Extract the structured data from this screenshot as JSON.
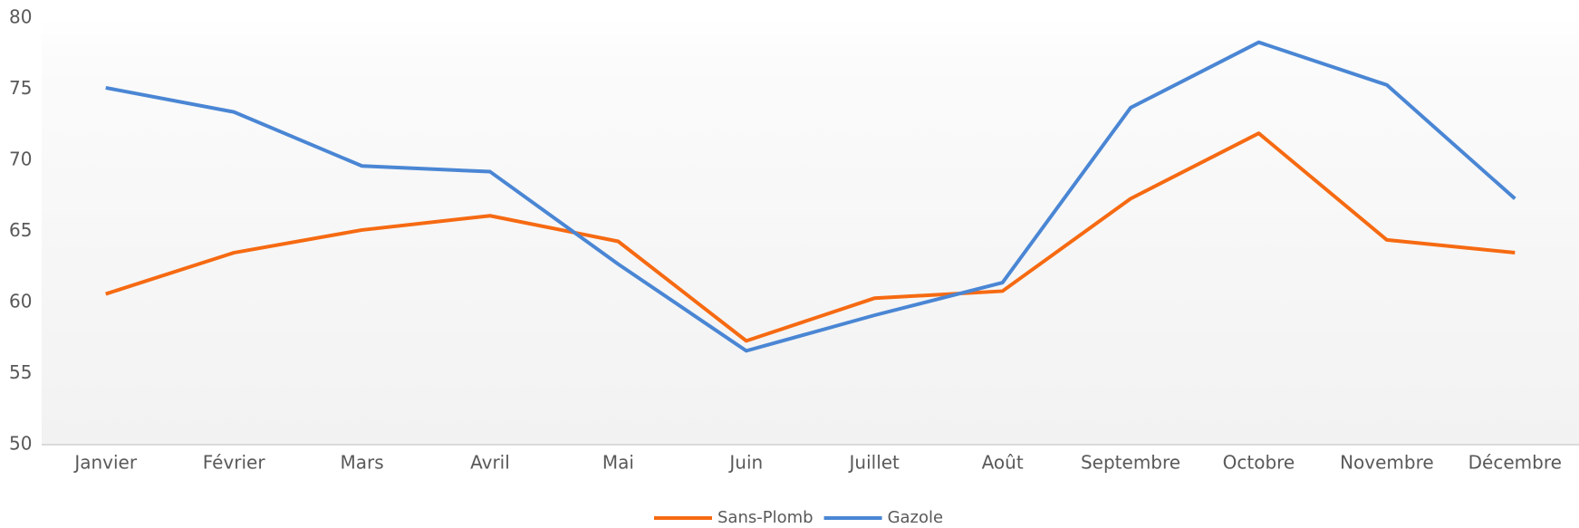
{
  "chart_data": {
    "type": "line",
    "categories": [
      "Janvier",
      "Février",
      "Mars",
      "Avril",
      "Mai",
      "Juin",
      "Juillet",
      "Août",
      "Septembre",
      "Octobre",
      "Novembre",
      "Décembre"
    ],
    "series": [
      {
        "name": "Sans-Plomb",
        "color": "#f66a12",
        "values": [
          60.6,
          63.5,
          65.1,
          66.1,
          64.3,
          57.3,
          60.3,
          60.8,
          67.3,
          71.9,
          64.4,
          63.5
        ]
      },
      {
        "name": "Gazole",
        "color": "#4a86d4",
        "values": [
          75.1,
          73.4,
          69.6,
          69.2,
          62.7,
          56.6,
          59.1,
          61.4,
          73.7,
          78.3,
          75.3,
          67.3
        ]
      }
    ],
    "ylim": [
      50,
      80
    ],
    "yticks": [
      50,
      55,
      60,
      65,
      70,
      75,
      80
    ],
    "legend": "bottom"
  }
}
